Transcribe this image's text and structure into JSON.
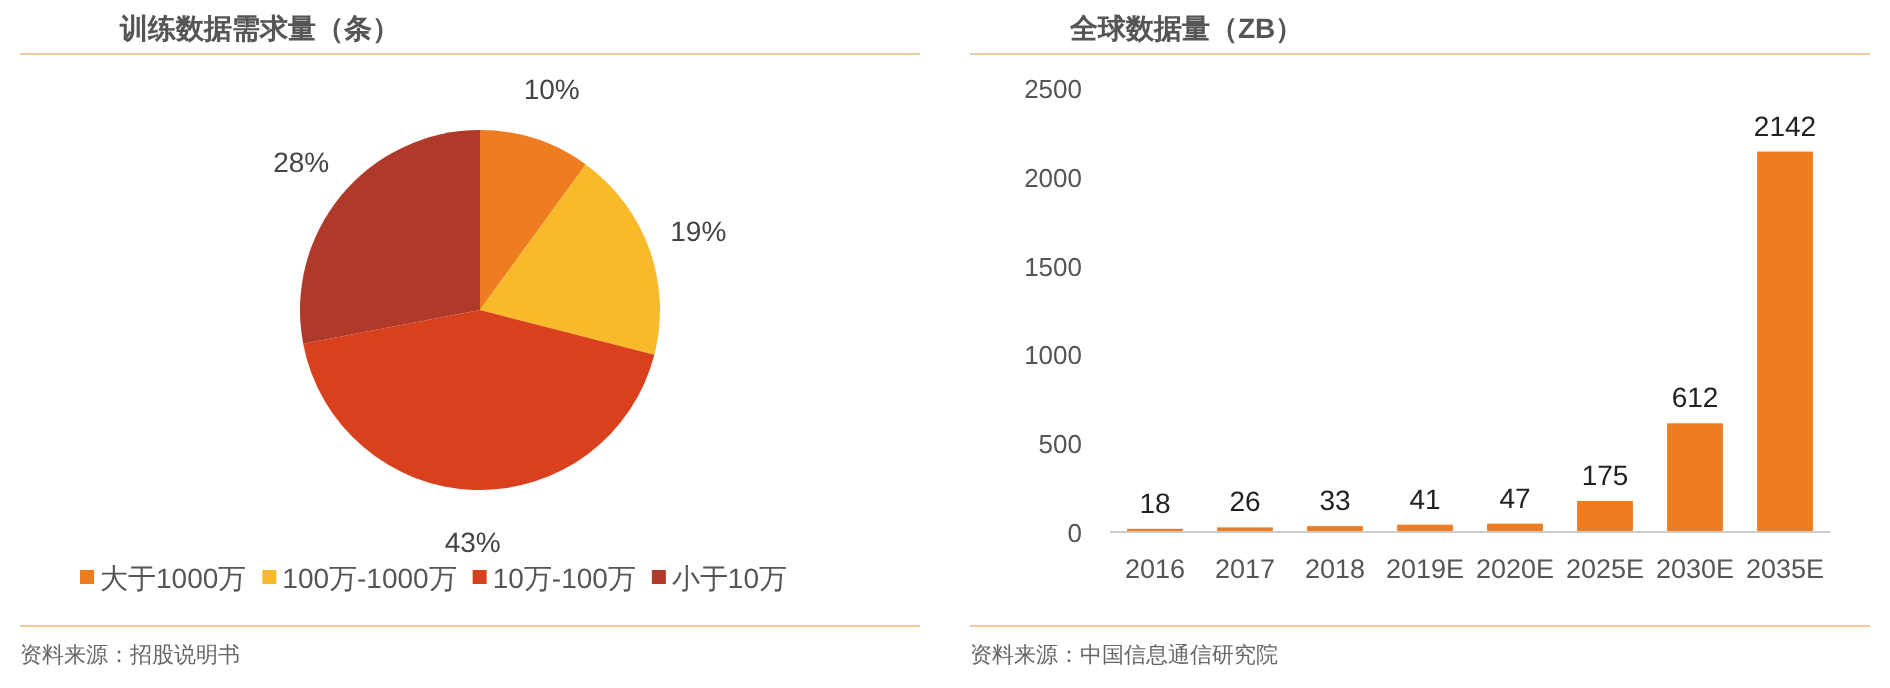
{
  "chart_data": [
    {
      "type": "pie",
      "title": "训练数据需求量（条）",
      "categories": [
        "大于1000万",
        "100万-1000万",
        "10万-100万",
        "小于10万"
      ],
      "values": [
        10,
        19,
        43,
        28
      ],
      "colors": [
        "#ee7d22",
        "#f8b92a",
        "#d9401e",
        "#b03a2a"
      ],
      "value_labels": [
        "10%",
        "19%",
        "43%",
        "28%"
      ],
      "legend": "bottom",
      "annotations": [
        "资料来源：招股说明书"
      ]
    },
    {
      "type": "bar",
      "title": "全球数据量（ZB）",
      "categories": [
        "2016",
        "2017",
        "2018",
        "2019E",
        "2020E",
        "2025E",
        "2030E",
        "2035E"
      ],
      "series": [
        {
          "color": "#ee7d22",
          "values": [
            18,
            26,
            33,
            41,
            47,
            175,
            612,
            2142
          ]
        }
      ],
      "ylim": [
        0,
        2500
      ],
      "yticks": [
        0,
        500,
        1000,
        1500,
        2000,
        2500
      ],
      "data_labels": true,
      "grid": false,
      "annotations": [
        "资料来源：中国信息通信研究院"
      ]
    }
  ]
}
